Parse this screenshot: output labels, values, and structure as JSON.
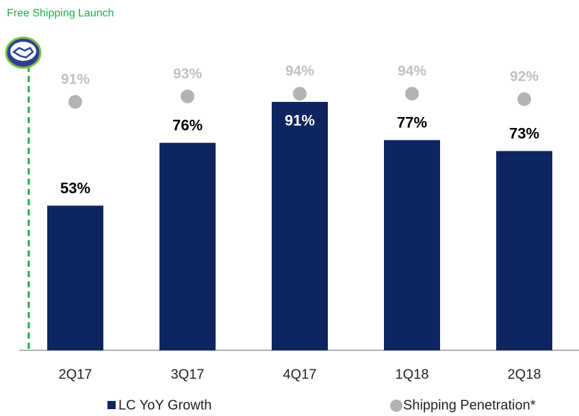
{
  "chart_data": {
    "type": "bar",
    "annotation": "Free Shipping Launch",
    "categories": [
      "2Q17",
      "3Q17",
      "4Q17",
      "1Q18",
      "2Q18"
    ],
    "series": [
      {
        "name": "LC YoY Growth",
        "color": "#0e2560",
        "values": [
          53,
          76,
          91,
          77,
          73
        ],
        "value_labels": [
          "53%",
          "76%",
          "91%",
          "77%",
          "73%"
        ]
      },
      {
        "name": "Shipping Penetration*",
        "color": "#b3b3b3",
        "values": [
          91,
          93,
          94,
          94,
          92
        ],
        "value_labels": [
          "91%",
          "93%",
          "94%",
          "94%",
          "92%"
        ]
      }
    ]
  }
}
